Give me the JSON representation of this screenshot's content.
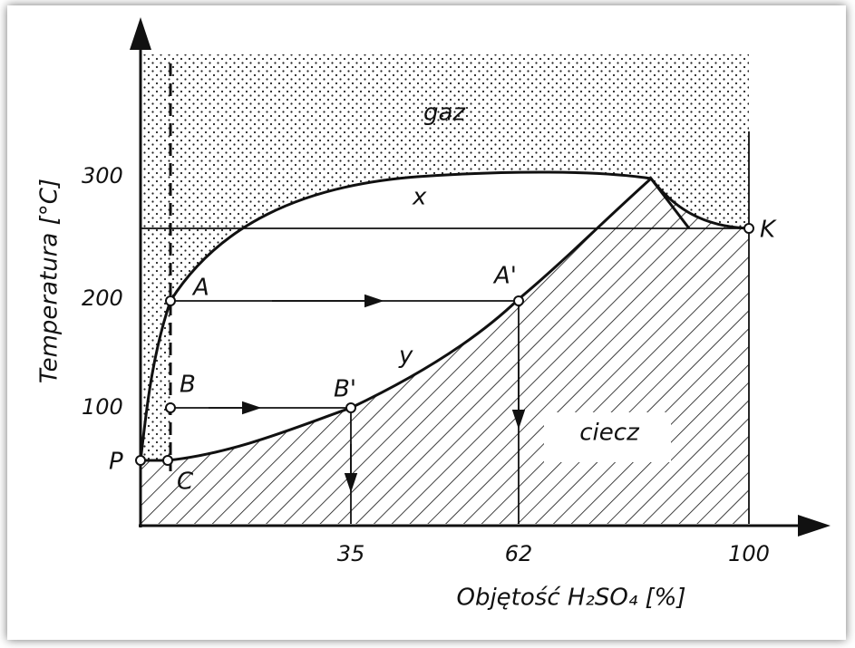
{
  "axes": {
    "y_label": "Temperatura [°C]",
    "x_label": "Objętość H₂SO₄  [%]",
    "y_ticks": [
      "300",
      "200",
      "100"
    ],
    "x_ticks": [
      "35",
      "62",
      "100"
    ]
  },
  "regions": {
    "gas": "gaz",
    "liquid": "ciecz"
  },
  "curves": {
    "upper": "x",
    "lower": "y"
  },
  "points": {
    "P": "P",
    "A": "A",
    "B": "B",
    "C": "C",
    "A2": "A'",
    "B2": "B'",
    "K": "K"
  }
}
